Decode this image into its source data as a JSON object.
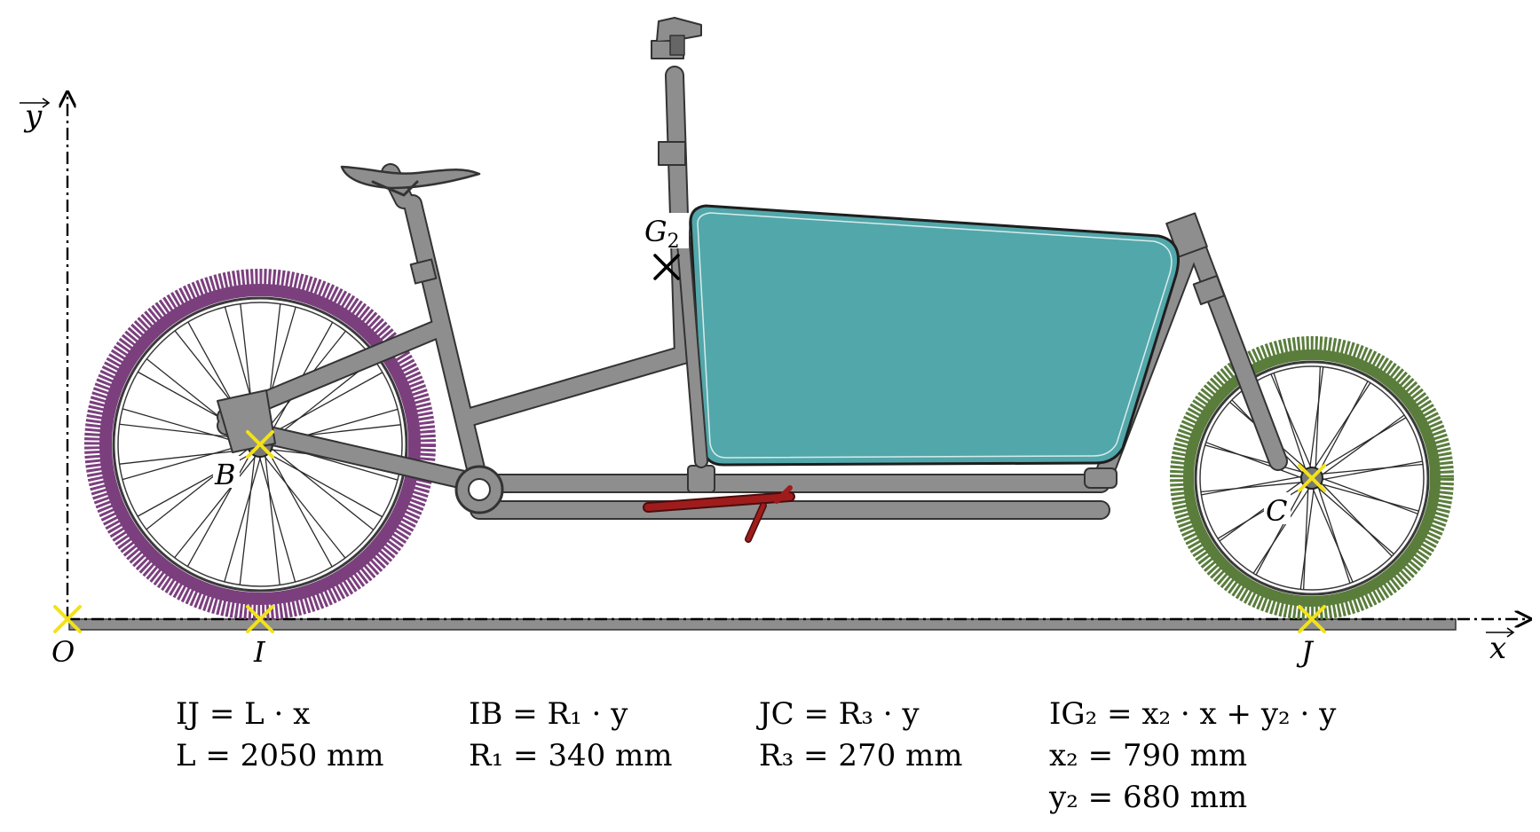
{
  "labels": {
    "origin": "O",
    "rear_contact": "I",
    "front_contact": "J",
    "rear_hub": "B",
    "front_hub": "C",
    "cog_letter": "G",
    "cog_index": "2",
    "axis_x": "x",
    "axis_y": "y"
  },
  "formulas": [
    {
      "lines": [
        "IJ = L · x",
        "L = 2050 mm"
      ]
    },
    {
      "lines": [
        "IB = R₁ · y",
        "R₁ = 340 mm"
      ]
    },
    {
      "lines": [
        "JC = R₃ · y",
        "R₃ = 270 mm"
      ]
    },
    {
      "lines": [
        "IG₂ = x₂ · x + y₂ · y",
        "x₂ = 790 mm",
        "y₂ = 680 mm"
      ]
    }
  ],
  "colors": {
    "rear_wheel": "#7b3f7e",
    "front_wheel": "#5a7d3c",
    "cargo_box": "#52a7aa",
    "frame": "#8e8e8e",
    "kickstand": "#a01c1c",
    "point_marker": "#f2e21a"
  }
}
